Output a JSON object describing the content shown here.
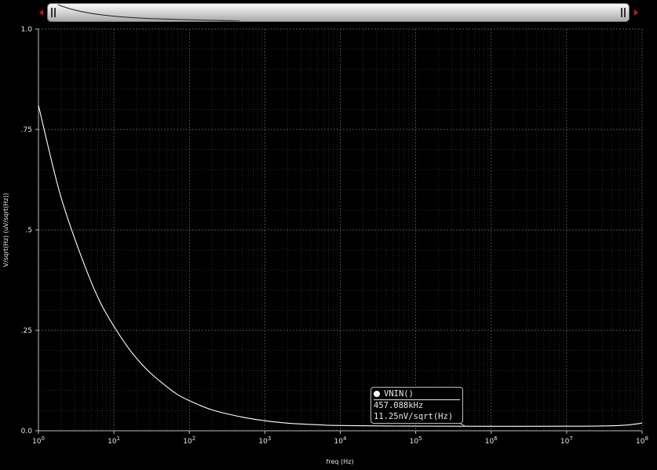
{
  "chart_data": {
    "type": "line",
    "xlabel": "freq (Hz)",
    "ylabel": "V/sqrt(Hz) (uV/sqrt(Hz))",
    "xscale": "log",
    "xlim": [
      1,
      100000000
    ],
    "ylim": [
      0,
      1.0
    ],
    "grid": true,
    "y_ticks": [
      {
        "value": 0,
        "label": "0.0"
      },
      {
        "value": 0.25,
        "label": ".25"
      },
      {
        "value": 0.5,
        "label": ".5"
      },
      {
        "value": 0.75,
        "label": ".75"
      },
      {
        "value": 1.0,
        "label": "1.0"
      }
    ],
    "x_ticks": [
      {
        "value": 1,
        "mant": "10",
        "exp": "0"
      },
      {
        "value": 10,
        "mant": "10",
        "exp": "1"
      },
      {
        "value": 100,
        "mant": "10",
        "exp": "2"
      },
      {
        "value": 1000,
        "mant": "10",
        "exp": "3"
      },
      {
        "value": 10000,
        "mant": "10",
        "exp": "4"
      },
      {
        "value": 100000,
        "mant": "10",
        "exp": "5"
      },
      {
        "value": 1000000,
        "mant": "10",
        "exp": "6"
      },
      {
        "value": 10000000,
        "mant": "10",
        "exp": "7"
      },
      {
        "value": 100000000,
        "mant": "10",
        "exp": "8"
      }
    ],
    "series": [
      {
        "name": "VNIN()",
        "color": "#ffffff",
        "x": [
          1,
          1.5,
          2,
          3,
          5,
          7,
          10,
          15,
          20,
          30,
          50,
          70,
          100,
          200,
          500,
          1000,
          2000,
          5000,
          10000,
          100000,
          1000000,
          10000000,
          50000000,
          100000000
        ],
        "y": [
          0.81,
          0.67,
          0.58,
          0.48,
          0.37,
          0.31,
          0.26,
          0.21,
          0.18,
          0.145,
          0.11,
          0.09,
          0.075,
          0.052,
          0.034,
          0.025,
          0.019,
          0.015,
          0.013,
          0.0115,
          0.0112,
          0.0113,
          0.013,
          0.019
        ]
      }
    ]
  },
  "marker": {
    "label": "VNIN()",
    "freq": "457.088kHz",
    "value": "11.25nV/sqrt(Hz)",
    "x": 457088,
    "y": 0.01125
  },
  "colors": {
    "background": "#000000",
    "trace": "#ffffff",
    "scroll_arrow": "#cc1111"
  }
}
